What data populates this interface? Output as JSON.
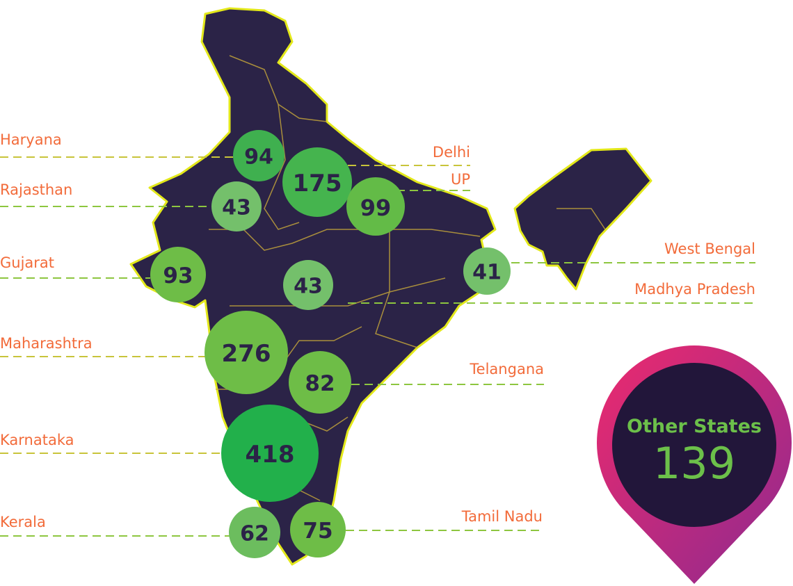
{
  "colors": {
    "map_fill": "#2b2347",
    "map_border": "#e3e81a",
    "state_lines": "#c9a93a",
    "label": "#f26b3a",
    "pin_gradient_start": "#ec2a6e",
    "pin_gradient_end": "#8e2a8f",
    "pin_inner": "#22163a",
    "pin_text": "#6cc04a"
  },
  "states": [
    {
      "name": "Haryana",
      "value": "94",
      "color": "#3fb04f"
    },
    {
      "name": "Delhi",
      "value": "175",
      "color": "#45b44e"
    },
    {
      "name": "UP",
      "value": "99",
      "color": "#63bb47"
    },
    {
      "name": "Rajasthan",
      "value": "43",
      "color": "#74c06b"
    },
    {
      "name": "Gujarat",
      "value": "93",
      "color": "#6ebd47"
    },
    {
      "name": "Madhya Pradesh",
      "value": "43",
      "color": "#74c06b"
    },
    {
      "name": "West Bengal",
      "value": "41",
      "color": "#74c06b"
    },
    {
      "name": "Maharashtra",
      "value": "276",
      "color": "#6ebd47"
    },
    {
      "name": "Telangana",
      "value": "82",
      "color": "#6ebd47"
    },
    {
      "name": "Karnataka",
      "value": "418",
      "color": "#22b04b"
    },
    {
      "name": "Kerala",
      "value": "62",
      "color": "#6cbd5e"
    },
    {
      "name": "Tamil Nadu",
      "value": "75",
      "color": "#6ebd47"
    }
  ],
  "other": {
    "label": "Other States",
    "value": "139"
  }
}
